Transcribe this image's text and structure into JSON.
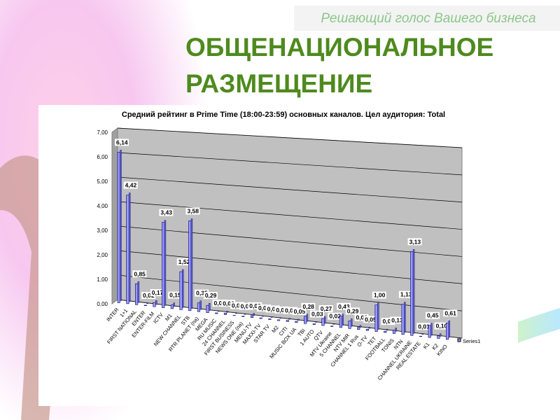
{
  "slogan": "Решающий голос Вашего бизнеса",
  "heading": [
    "ОБЩЕНАЦИОНАЛЬНОЕ",
    "РАЗМЕЩЕНИЕ"
  ],
  "chart_data": {
    "type": "bar",
    "title": "Средний рейтинг в Prime Time (18:00-23:59) основных каналов. Цел аудитория: Total",
    "categories": [
      "INTER",
      "1+1",
      "FIRST NATIONAL",
      "ENTER",
      "ENTER-FILM",
      "ICTV",
      "M1",
      "NEW CHANNEL",
      "STB",
      "RTR PLANET (na)",
      "MEGA",
      "RU MUSIC",
      "24 CHANNEL",
      "FIRST BUSINESS",
      "NEWS ONE (na)",
      "MENU-TV",
      "MAXXI-TV",
      "STAR TV",
      "M2",
      "CITI",
      "MUSIC BOX UA",
      "TBI",
      "1 AUTO",
      "QTV",
      "MTV Ukraine",
      "5 CHANNEL",
      "NTV MIR",
      "CHANNEL 1 Rus",
      "O-TV",
      "TET",
      "FOOTBALL",
      "TONIS",
      "NTN",
      "CHANNEL UKRAINE",
      "REAL ESTATE",
      "K1",
      "K2",
      "KINO"
    ],
    "series": [
      {
        "name": "Series1",
        "color": "#9999ff",
        "values": [
          6.14,
          4.42,
          0.85,
          0.02,
          0.17,
          3.43,
          0.15,
          1.52,
          3.58,
          0.35,
          0.29,
          0.03,
          0.06,
          0.01,
          0.02,
          0.08,
          0.03,
          0.03,
          0.03,
          0.05,
          0.05,
          0.28,
          0.03,
          0.27,
          0.02,
          0.43,
          0.29,
          0.08,
          0.05,
          1.0,
          0.05,
          0.13,
          1.13,
          3.13,
          0.01,
          0.45,
          0.1,
          0.61
        ],
        "value_labels": [
          "6,14",
          "4,42",
          "0,85",
          "0,02",
          "0,17",
          "3,43",
          "0,15",
          "1,52",
          "3,58",
          "0,35",
          "0,29",
          "0,03",
          "0,06",
          "0,01",
          "0,02",
          "0,08",
          "0,03",
          "0,03",
          "0,03",
          "0,05",
          "0,05",
          "0,28",
          "0,03",
          "0,27",
          "0,02",
          "0,43",
          "0,29",
          "0,08",
          "0,05",
          "1,00",
          "0,05",
          "0,13",
          "1,13",
          "3,13",
          "0,01",
          "0,45",
          "0,10",
          "0,61"
        ]
      }
    ],
    "ylim": [
      0,
      7
    ],
    "yticks": [
      {
        "value": 0,
        "label": "0,00"
      },
      {
        "value": 1,
        "label": "1,00"
      },
      {
        "value": 2,
        "label": "2,00"
      },
      {
        "value": 3,
        "label": "3,00"
      },
      {
        "value": 4,
        "label": "4,00"
      },
      {
        "value": 5,
        "label": "5,00"
      },
      {
        "value": 6,
        "label": "6,00"
      },
      {
        "value": 7,
        "label": "7,00"
      }
    ],
    "grid": true,
    "legend": "right"
  }
}
